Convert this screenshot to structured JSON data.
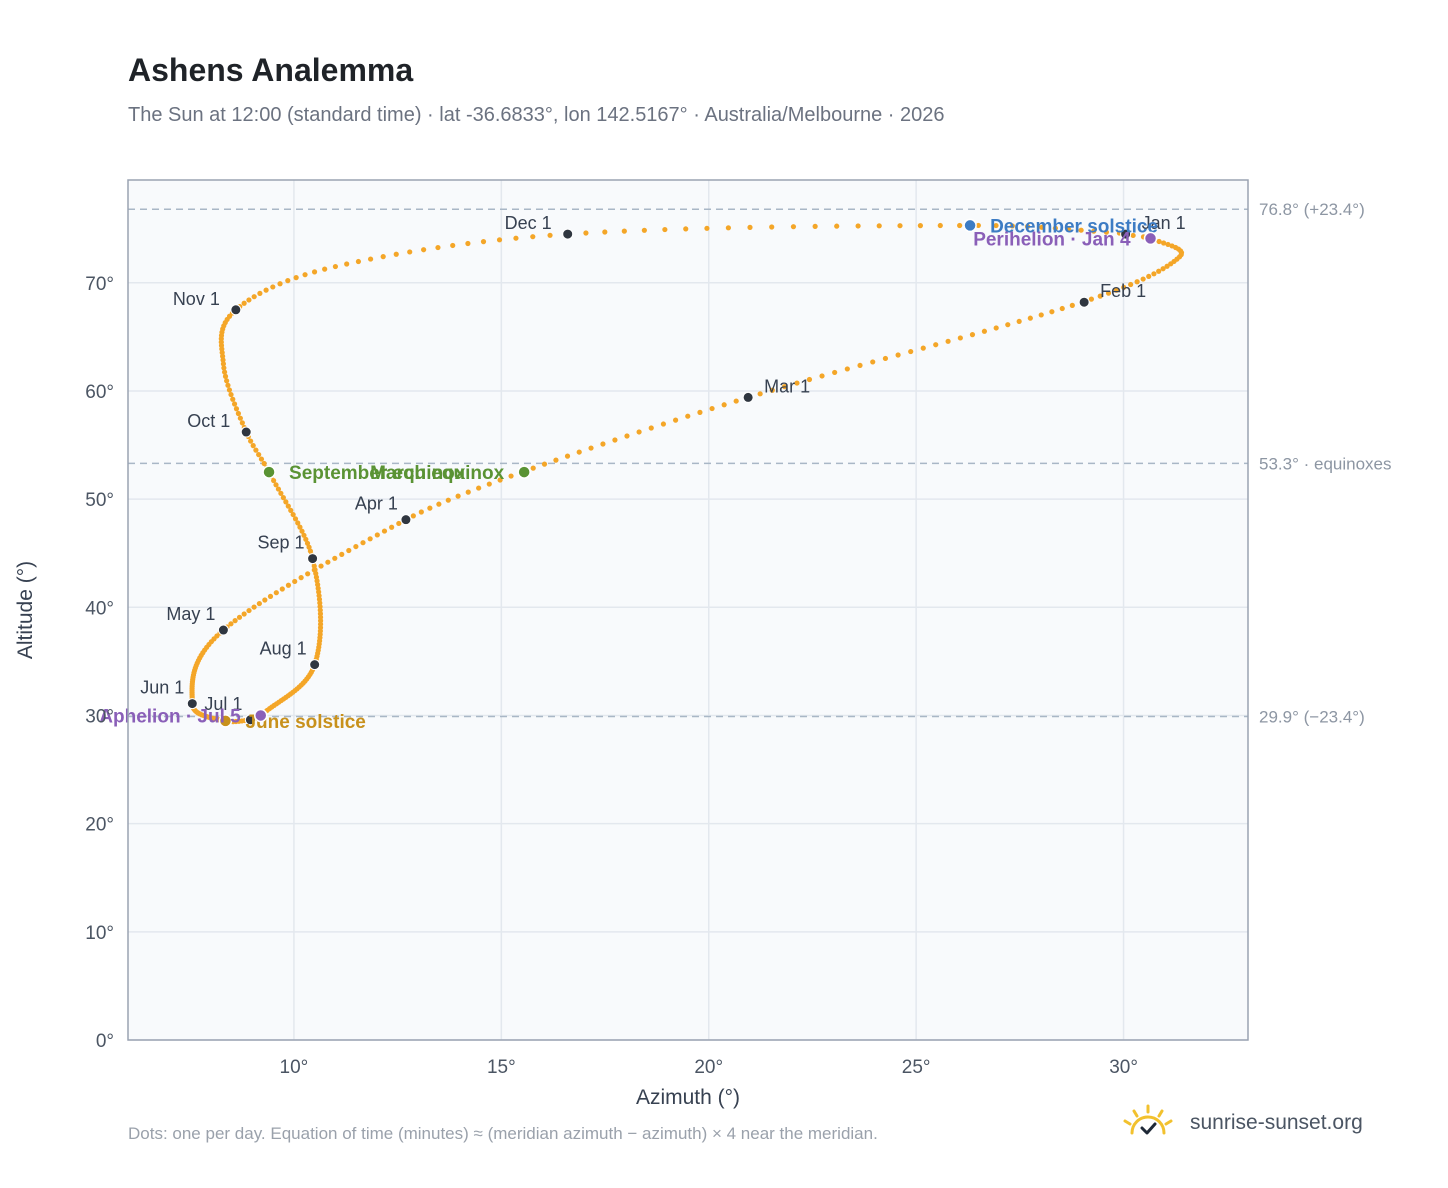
{
  "header": {
    "title": "Ashens Analemma",
    "subtitle": "The Sun at 12:00 (standard time) · lat -36.6833°, lon 142.5167° · Australia/Melbourne · 2026"
  },
  "footer": {
    "note": "Dots: one per day. Equation of time (minutes) ≈ (meridian azimuth − azimuth) × 4 near the meridian.",
    "brand": "sunrise-sunset.org"
  },
  "colors": {
    "curve": "#f4a628",
    "month_marker": "#2f3640",
    "equinox": "#5a9334",
    "june_solstice": "#c8911c",
    "december_solstice": "#3d7cc4",
    "apsis": "#8a5fb8",
    "reference_line": "#a9b7c6",
    "plot_background": "#f8fafc",
    "grid": "#e3e8ee"
  },
  "chart_data": {
    "type": "scatter",
    "xlabel": "Azimuth (°)",
    "ylabel": "Altitude (°)",
    "xlim": [
      6,
      33
    ],
    "ylim": [
      0,
      79.5
    ],
    "x_ticks": [
      "10°",
      "15°",
      "20°",
      "25°",
      "30°"
    ],
    "x_tick_values": [
      10,
      15,
      20,
      25,
      30
    ],
    "y_ticks": [
      "0°",
      "10°",
      "20°",
      "30°",
      "40°",
      "50°",
      "60°",
      "70°"
    ],
    "y_tick_values": [
      0,
      10,
      20,
      30,
      40,
      50,
      60,
      70
    ],
    "grid": true,
    "series": [
      {
        "points_per_day": true,
        "anchors": [
          {
            "date": "Jan 1",
            "x": 30.0,
            "y": 74.5
          },
          {
            "date": "Jan 4",
            "x": 30.65,
            "y": 74.1
          },
          {
            "date": "Jan 15",
            "x": 31.35,
            "y": 72.4
          },
          {
            "date": "Feb 1",
            "x": 29.0,
            "y": 68.2
          },
          {
            "date": "Mar 1",
            "x": 20.95,
            "y": 59.4
          },
          {
            "date": "Mar 20",
            "x": 15.5,
            "y": 52.5
          },
          {
            "date": "Apr 1",
            "x": 12.7,
            "y": 48.1
          },
          {
            "date": "May 1",
            "x": 8.3,
            "y": 37.9
          },
          {
            "date": "Jun 1",
            "x": 7.55,
            "y": 31.1
          },
          {
            "date": "Jun 21",
            "x": 8.3,
            "y": 29.5
          },
          {
            "date": "Jul 1",
            "x": 8.95,
            "y": 29.6
          },
          {
            "date": "Jul 5",
            "x": 9.2,
            "y": 30.0
          },
          {
            "date": "Aug 1",
            "x": 10.5,
            "y": 34.7
          },
          {
            "date": "Sep 1",
            "x": 10.45,
            "y": 44.5
          },
          {
            "date": "Sep 22",
            "x": 9.4,
            "y": 52.5
          },
          {
            "date": "Oct 1",
            "x": 8.85,
            "y": 56.2
          },
          {
            "date": "Oct 16",
            "x": 8.3,
            "y": 62.5
          },
          {
            "date": "Nov 1",
            "x": 8.6,
            "y": 67.5
          },
          {
            "date": "Nov 15",
            "x": 11.0,
            "y": 71.5
          },
          {
            "date": "Dec 1",
            "x": 16.6,
            "y": 74.5
          },
          {
            "date": "Dec 21",
            "x": 26.5,
            "y": 75.3
          },
          {
            "date": "Dec 31",
            "x": 29.9,
            "y": 74.6
          }
        ]
      }
    ],
    "month_markers": [
      {
        "label": "Jan 1",
        "x": 30.05,
        "y": 74.5,
        "pos": "above-right"
      },
      {
        "label": "Feb 1",
        "x": 29.05,
        "y": 68.2,
        "pos": "above-right"
      },
      {
        "label": "Mar 1",
        "x": 20.95,
        "y": 59.4,
        "pos": "above-right"
      },
      {
        "label": "Apr 1",
        "x": 12.7,
        "y": 48.1,
        "pos": "below-left"
      },
      {
        "label": "May 1",
        "x": 8.3,
        "y": 37.9,
        "pos": "below-left"
      },
      {
        "label": "Jun 1",
        "x": 7.55,
        "y": 31.1,
        "pos": "below-left"
      },
      {
        "label": "Jul 1",
        "x": 8.95,
        "y": 29.6,
        "pos": "below-left"
      },
      {
        "label": "Aug 1",
        "x": 10.5,
        "y": 34.7,
        "pos": "below-left"
      },
      {
        "label": "Sep 1",
        "x": 10.45,
        "y": 44.5,
        "pos": "below-left"
      },
      {
        "label": "Oct 1",
        "x": 8.85,
        "y": 56.2,
        "pos": "above-left"
      },
      {
        "label": "Nov 1",
        "x": 8.6,
        "y": 67.5,
        "pos": "above-left"
      },
      {
        "label": "Dec 1",
        "x": 16.6,
        "y": 74.5,
        "pos": "above-left"
      }
    ],
    "events": [
      {
        "label": "March equinox",
        "x": 15.55,
        "y": 52.5,
        "color": "#5a9334",
        "align": "end"
      },
      {
        "label": "September equinox",
        "x": 9.4,
        "y": 52.5,
        "color": "#5a9334",
        "align": "start"
      },
      {
        "label": "June solstice",
        "x": 8.35,
        "y": 29.5,
        "color": "#c8911c",
        "align": "start"
      },
      {
        "label": "December solstice",
        "x": 26.3,
        "y": 75.3,
        "color": "#3d7cc4",
        "align": "start"
      },
      {
        "label": "Perihelion · Jan 4",
        "x": 30.65,
        "y": 74.1,
        "color": "#8a5fb8",
        "align": "end"
      },
      {
        "label": "Aphelion · Jul 5",
        "x": 9.2,
        "y": 30.0,
        "color": "#8a5fb8",
        "align": "end"
      }
    ],
    "reference_lines": [
      {
        "y": 76.8,
        "label": "76.8° (+23.4°)"
      },
      {
        "y": 53.3,
        "label": "53.3° · equinoxes"
      },
      {
        "y": 29.9,
        "label": "29.9° (−23.4°)"
      }
    ]
  }
}
